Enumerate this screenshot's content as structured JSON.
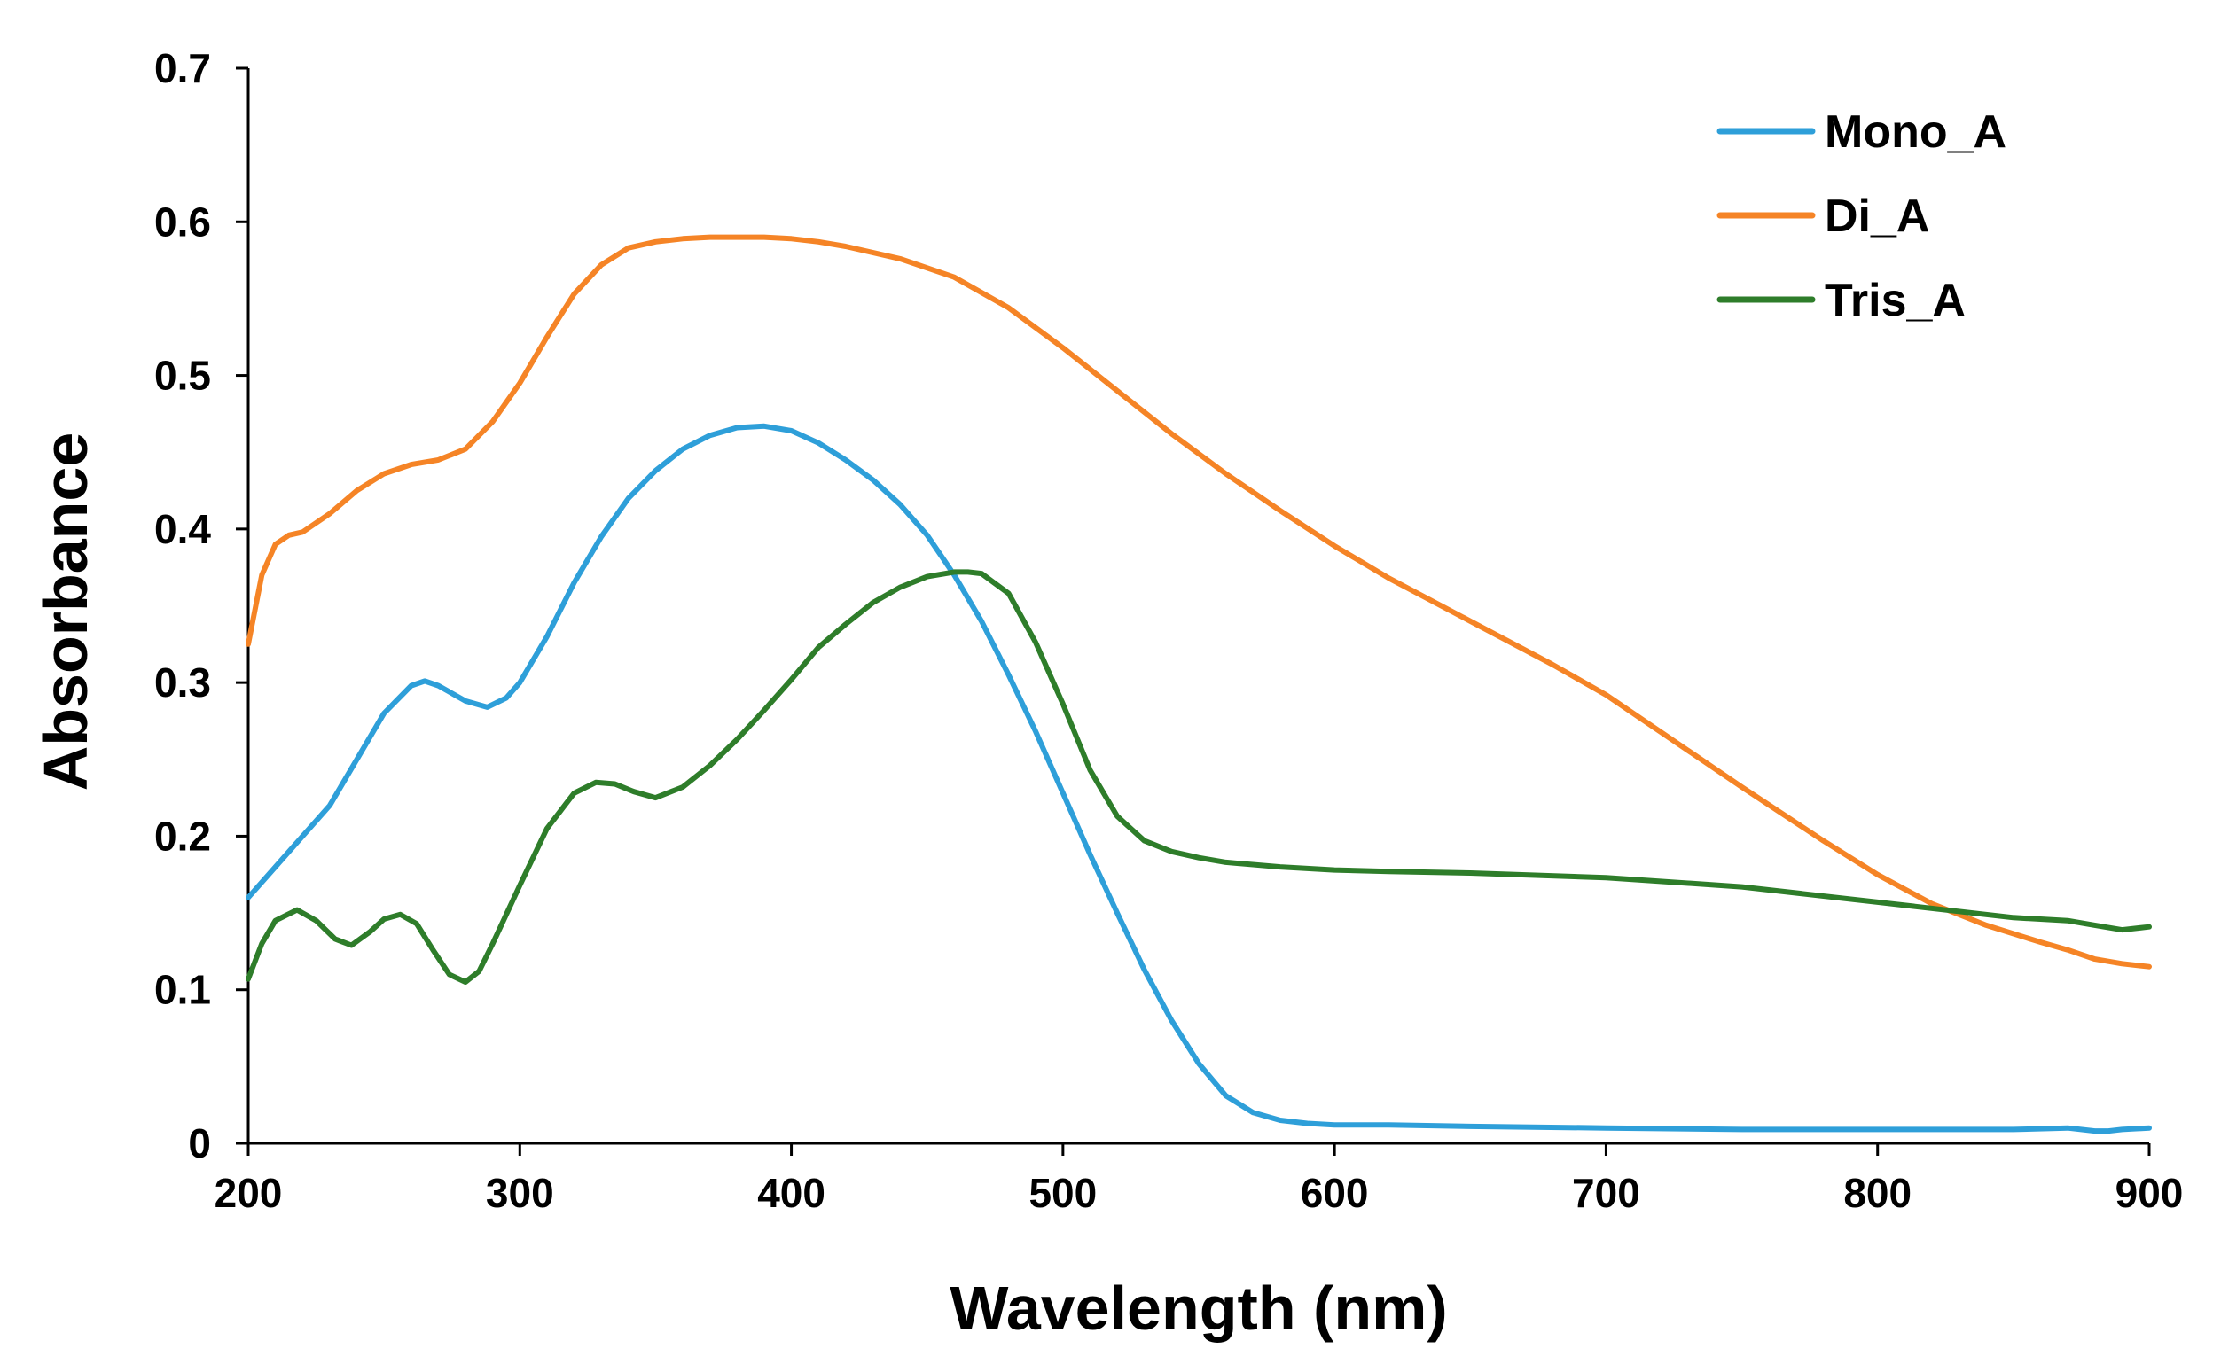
{
  "chart_data": {
    "type": "line",
    "title": "",
    "xlabel": "Wavelength (nm)",
    "ylabel": "Absorbance",
    "xlim": [
      200,
      900
    ],
    "ylim": [
      0,
      0.7
    ],
    "xticks": [
      "200",
      "300",
      "400",
      "500",
      "600",
      "700",
      "800",
      "900"
    ],
    "yticks": [
      "0",
      "0.1",
      "0.2",
      "0.3",
      "0.4",
      "0.5",
      "0.6",
      "0.7"
    ],
    "grid": false,
    "legend_position": "top-right",
    "series": [
      {
        "name": "Mono_A",
        "color": "#2e9fd9",
        "x": [
          200,
          210,
          220,
          230,
          240,
          250,
          260,
          265,
          270,
          280,
          288,
          295,
          300,
          310,
          320,
          330,
          340,
          350,
          360,
          370,
          380,
          390,
          400,
          410,
          420,
          430,
          440,
          450,
          460,
          470,
          480,
          490,
          500,
          510,
          520,
          530,
          540,
          550,
          560,
          570,
          580,
          590,
          600,
          620,
          650,
          700,
          750,
          800,
          850,
          870,
          880,
          885,
          890,
          900
        ],
        "y": [
          0.16,
          0.18,
          0.2,
          0.22,
          0.25,
          0.28,
          0.298,
          0.301,
          0.298,
          0.288,
          0.284,
          0.29,
          0.3,
          0.33,
          0.365,
          0.395,
          0.42,
          0.438,
          0.452,
          0.461,
          0.466,
          0.467,
          0.464,
          0.456,
          0.445,
          0.432,
          0.416,
          0.396,
          0.37,
          0.34,
          0.305,
          0.268,
          0.228,
          0.188,
          0.15,
          0.113,
          0.08,
          0.052,
          0.031,
          0.02,
          0.015,
          0.013,
          0.012,
          0.012,
          0.011,
          0.01,
          0.009,
          0.009,
          0.009,
          0.01,
          0.008,
          0.008,
          0.009,
          0.01
        ]
      },
      {
        "name": "Di_A",
        "color": "#f58426",
        "x": [
          200,
          205,
          210,
          215,
          220,
          230,
          240,
          250,
          260,
          270,
          280,
          290,
          300,
          310,
          320,
          330,
          340,
          350,
          360,
          370,
          380,
          390,
          400,
          410,
          420,
          440,
          460,
          480,
          500,
          520,
          540,
          560,
          580,
          600,
          620,
          650,
          680,
          700,
          720,
          750,
          780,
          800,
          820,
          840,
          860,
          870,
          880,
          890,
          900
        ],
        "y": [
          0.325,
          0.37,
          0.39,
          0.396,
          0.398,
          0.41,
          0.425,
          0.436,
          0.442,
          0.445,
          0.452,
          0.47,
          0.495,
          0.525,
          0.553,
          0.572,
          0.583,
          0.587,
          0.589,
          0.59,
          0.59,
          0.59,
          0.589,
          0.587,
          0.584,
          0.576,
          0.564,
          0.544,
          0.518,
          0.49,
          0.462,
          0.436,
          0.412,
          0.389,
          0.368,
          0.34,
          0.312,
          0.292,
          0.268,
          0.232,
          0.197,
          0.175,
          0.156,
          0.142,
          0.131,
          0.126,
          0.12,
          0.117,
          0.115
        ]
      },
      {
        "name": "Tris_A",
        "color": "#2e7d2a",
        "x": [
          200,
          205,
          210,
          218,
          225,
          232,
          238,
          245,
          250,
          256,
          262,
          268,
          274,
          280,
          285,
          290,
          300,
          310,
          320,
          328,
          335,
          342,
          350,
          360,
          370,
          380,
          390,
          400,
          410,
          420,
          430,
          440,
          450,
          460,
          465,
          470,
          480,
          490,
          500,
          510,
          520,
          530,
          540,
          550,
          560,
          580,
          600,
          620,
          650,
          700,
          750,
          800,
          850,
          870,
          880,
          890,
          900
        ],
        "y": [
          0.107,
          0.13,
          0.145,
          0.152,
          0.145,
          0.133,
          0.129,
          0.138,
          0.146,
          0.149,
          0.143,
          0.126,
          0.11,
          0.105,
          0.112,
          0.13,
          0.168,
          0.205,
          0.228,
          0.235,
          0.234,
          0.229,
          0.225,
          0.232,
          0.246,
          0.263,
          0.282,
          0.302,
          0.323,
          0.338,
          0.352,
          0.362,
          0.369,
          0.372,
          0.372,
          0.371,
          0.358,
          0.326,
          0.286,
          0.243,
          0.213,
          0.197,
          0.19,
          0.186,
          0.183,
          0.18,
          0.178,
          0.177,
          0.176,
          0.173,
          0.167,
          0.157,
          0.147,
          0.145,
          0.142,
          0.139,
          0.141
        ]
      }
    ]
  }
}
